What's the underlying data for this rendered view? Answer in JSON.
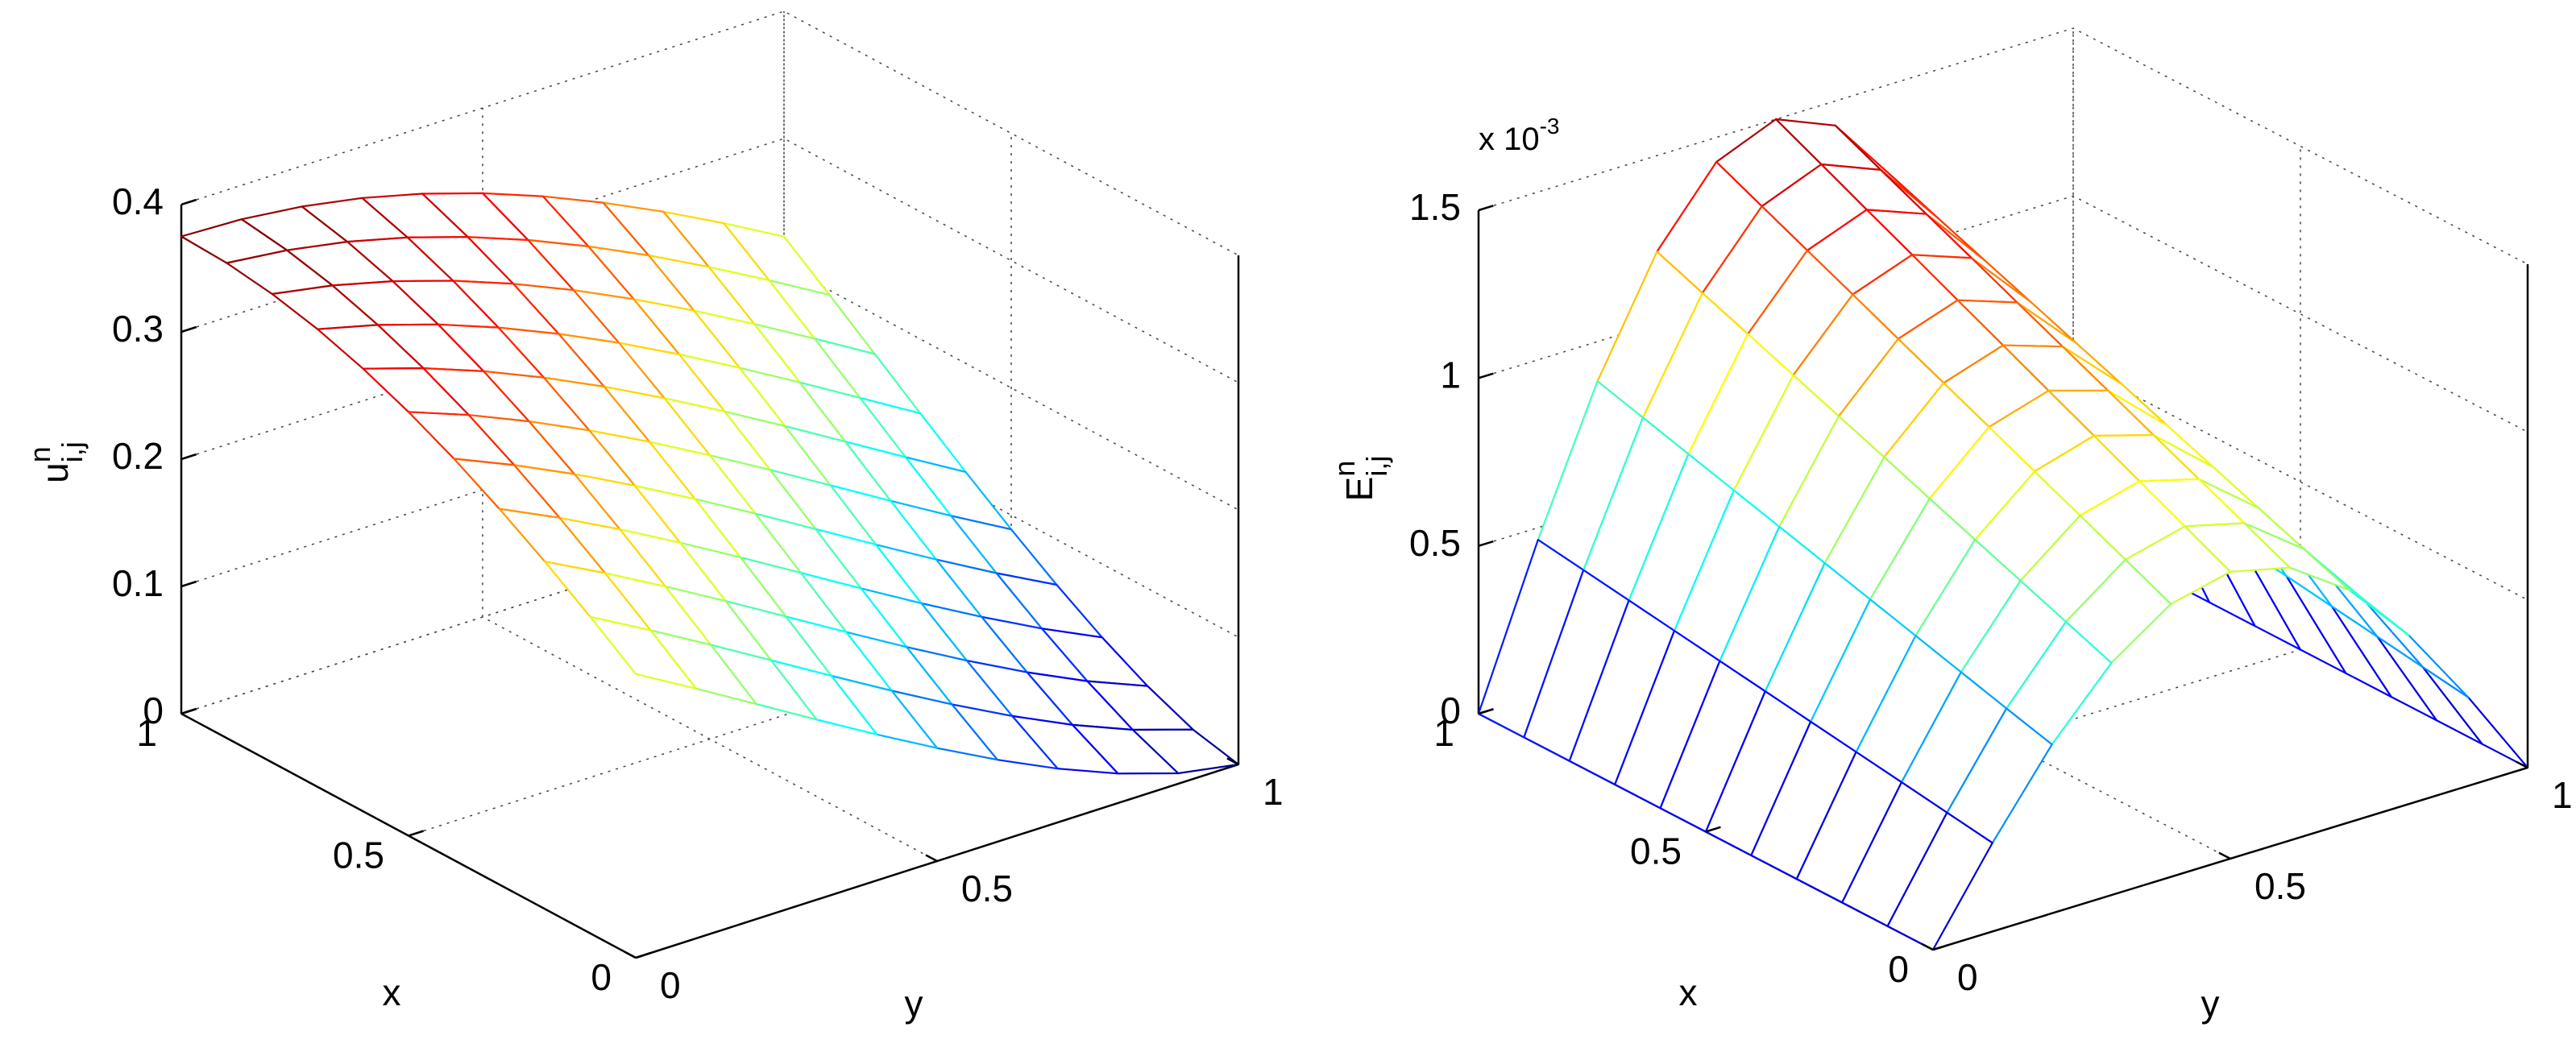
{
  "chart_data": [
    {
      "type": "surface",
      "colormap": "jet",
      "grid": true,
      "xlabel": "x",
      "ylabel": "y",
      "zlabel": "u",
      "zlabel_sup": "n",
      "zlabel_sub": "i,j",
      "x": [
        0,
        0.1,
        0.2,
        0.3,
        0.4,
        0.5,
        0.6,
        0.7,
        0.8,
        0.9,
        1
      ],
      "y": [
        0,
        0.1,
        0.2,
        0.3,
        0.4,
        0.5,
        0.6,
        0.7,
        0.8,
        0.9,
        1
      ],
      "z": [
        [
          0.223,
          0.1963,
          0.169,
          0.1416,
          0.1147,
          0.0888,
          0.0644,
          0.0423,
          0.0232,
          0.0082,
          0
        ],
        [
          0.2487,
          0.223,
          0.1963,
          0.169,
          0.1416,
          0.1147,
          0.0888,
          0.0644,
          0.0423,
          0.0232,
          0.0082
        ],
        [
          0.2729,
          0.2487,
          0.223,
          0.1963,
          0.169,
          0.1416,
          0.1147,
          0.0888,
          0.0644,
          0.0423,
          0.0232
        ],
        [
          0.2952,
          0.2729,
          0.2487,
          0.223,
          0.1963,
          0.169,
          0.1416,
          0.1147,
          0.0888,
          0.0644,
          0.0423
        ],
        [
          0.3154,
          0.2952,
          0.2729,
          0.2487,
          0.223,
          0.1963,
          0.169,
          0.1416,
          0.1147,
          0.0888,
          0.0644
        ],
        [
          0.333,
          0.3154,
          0.2952,
          0.2729,
          0.2487,
          0.223,
          0.1963,
          0.169,
          0.1416,
          0.1147,
          0.0888
        ],
        [
          0.3478,
          0.333,
          0.3154,
          0.2952,
          0.2729,
          0.2487,
          0.223,
          0.1963,
          0.169,
          0.1416,
          0.1147
        ],
        [
          0.3596,
          0.3478,
          0.333,
          0.3154,
          0.2952,
          0.2729,
          0.2487,
          0.223,
          0.1963,
          0.169,
          0.1416
        ],
        [
          0.3681,
          0.3596,
          0.3478,
          0.333,
          0.3154,
          0.2952,
          0.2729,
          0.2487,
          0.223,
          0.1963,
          0.169
        ],
        [
          0.3733,
          0.3681,
          0.3596,
          0.3478,
          0.333,
          0.3154,
          0.2952,
          0.2729,
          0.2487,
          0.223,
          0.1963
        ],
        [
          0.375,
          0.3733,
          0.3681,
          0.3596,
          0.3478,
          0.333,
          0.3154,
          0.2952,
          0.2729,
          0.2487,
          0.223
        ]
      ],
      "xlim": [
        0,
        1
      ],
      "ylim": [
        0,
        1
      ],
      "zlim": [
        0,
        0.4
      ],
      "xticks": [
        0,
        0.5,
        1
      ],
      "yticks": [
        0,
        0.5,
        1
      ],
      "zticks": [
        0,
        0.1,
        0.2,
        0.3,
        0.4
      ]
    },
    {
      "type": "surface",
      "colormap": "jet",
      "grid": true,
      "xlabel": "x",
      "ylabel": "y",
      "zlabel": "E",
      "zlabel_sup": "n",
      "zlabel_sub": "i,j",
      "z_multiplier": "x 10",
      "z_multiplier_exp": "-3",
      "x": [
        0,
        0.1,
        0.2,
        0.3,
        0.4,
        0.5,
        0.6,
        0.7,
        0.8,
        0.9,
        1
      ],
      "y": [
        0,
        0.1,
        0.2,
        0.3,
        0.4,
        0.5,
        0.6,
        0.7,
        0.8,
        0.9,
        1
      ],
      "z": [
        [
          0,
          0.264,
          0.503,
          0.692,
          0.813,
          0.855,
          0.813,
          0.692,
          0.503,
          0.264,
          0
        ],
        [
          0,
          0.284,
          0.54,
          0.744,
          0.875,
          0.92,
          0.875,
          0.744,
          0.54,
          0.284,
          0
        ],
        [
          0,
          0.304,
          0.578,
          0.796,
          0.936,
          0.984,
          0.936,
          0.796,
          0.578,
          0.304,
          0
        ],
        [
          0,
          0.324,
          0.616,
          0.848,
          0.997,
          1.049,
          0.997,
          0.848,
          0.616,
          0.324,
          0
        ],
        [
          0,
          0.344,
          0.654,
          0.9,
          1.059,
          1.113,
          1.059,
          0.9,
          0.654,
          0.344,
          0
        ],
        [
          0,
          0.364,
          0.692,
          0.953,
          1.12,
          1.178,
          1.12,
          0.953,
          0.692,
          0.364,
          0
        ],
        [
          0,
          0.384,
          0.73,
          1.005,
          1.181,
          1.242,
          1.181,
          1.005,
          0.73,
          0.384,
          0
        ],
        [
          0,
          0.404,
          0.768,
          1.057,
          1.243,
          1.307,
          1.243,
          1.057,
          0.768,
          0.404,
          0
        ],
        [
          0,
          0.424,
          0.806,
          1.109,
          1.304,
          1.371,
          1.304,
          1.109,
          0.806,
          0.424,
          0
        ],
        [
          0,
          0.444,
          0.844,
          1.161,
          1.365,
          1.436,
          1.365,
          1.161,
          0.844,
          0.444,
          0
        ],
        [
          0,
          0.464,
          0.882,
          1.214,
          1.427,
          1.5,
          1.427,
          1.214,
          0.882,
          0.464,
          0
        ]
      ],
      "xlim": [
        0,
        1
      ],
      "ylim": [
        0,
        1
      ],
      "zlim": [
        0,
        1.5
      ],
      "xticks": [
        0,
        0.5,
        1
      ],
      "yticks": [
        0,
        0.5,
        1
      ],
      "zticks": [
        0,
        0.5,
        1,
        1.5
      ]
    }
  ]
}
